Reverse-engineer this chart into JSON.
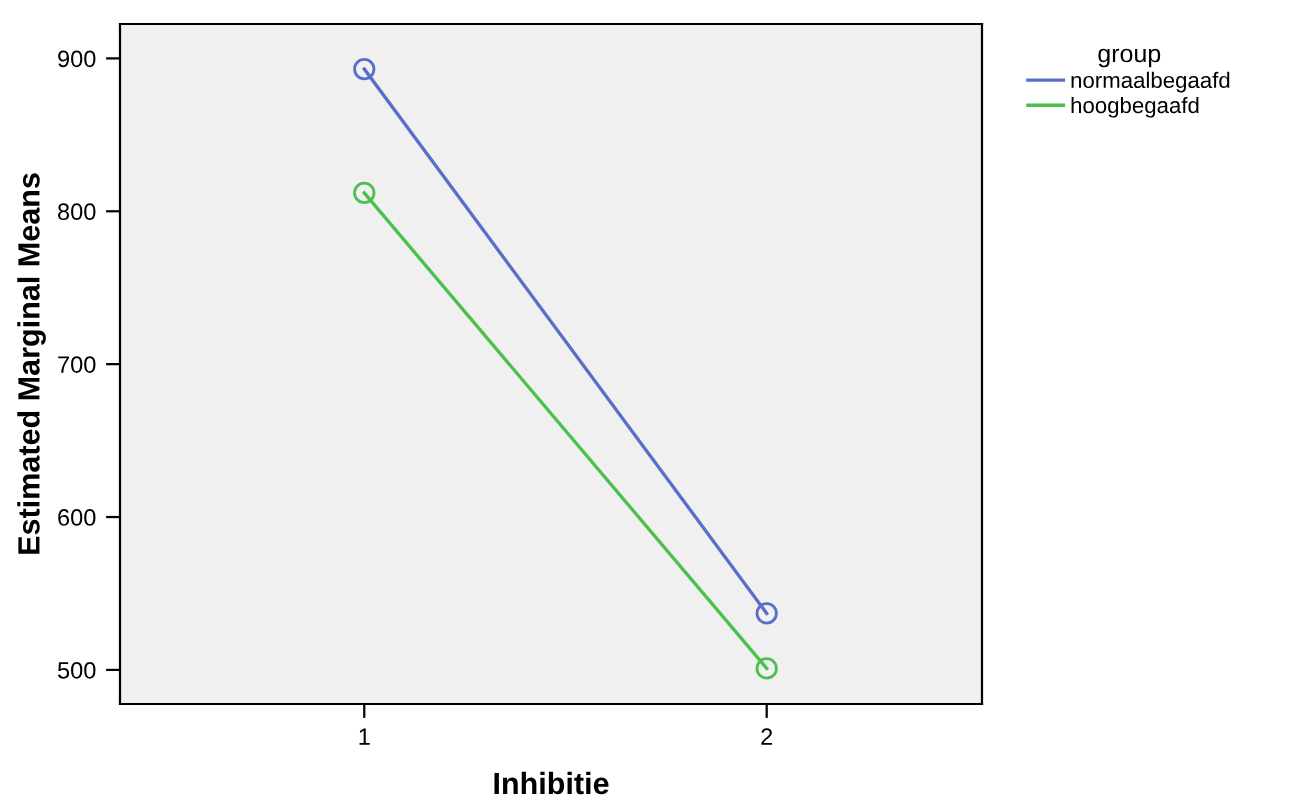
{
  "chart_data": {
    "type": "line",
    "xlabel": "Inhibitie",
    "ylabel": "Estimated Marginal Means",
    "legend_title": "group",
    "categories": [
      "1",
      "2"
    ],
    "series": [
      {
        "name": "normaalbegaafd",
        "color": "#5a6ec8",
        "values": [
          893,
          537
        ]
      },
      {
        "name": "hoogbegaafd",
        "color": "#4cc04c",
        "values": [
          812,
          501
        ]
      }
    ],
    "ylim": [
      477.7,
      922.5
    ],
    "yticks": [
      500,
      600,
      700,
      800,
      900
    ],
    "marker": "circle",
    "legend": "top right",
    "grid": false
  }
}
